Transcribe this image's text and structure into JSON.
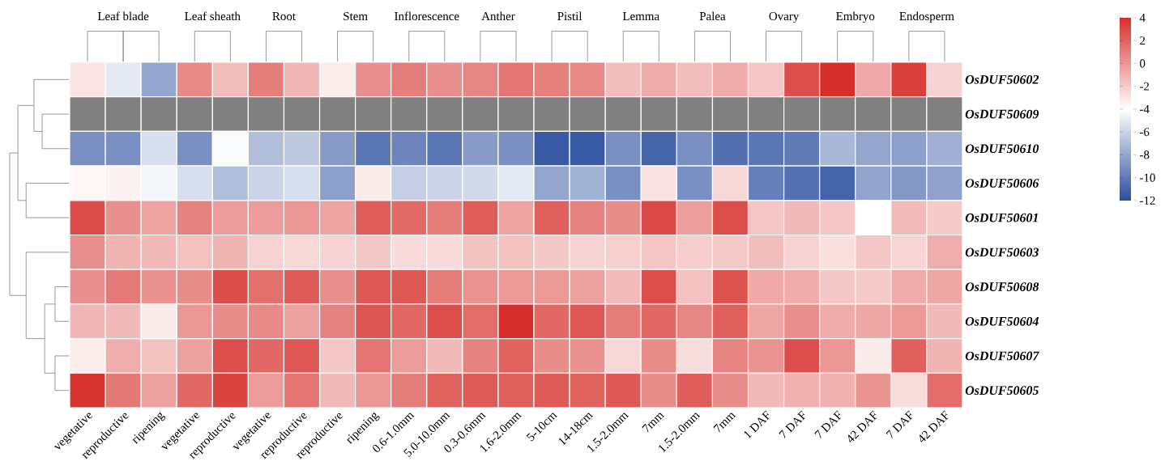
{
  "chart_data": {
    "type": "heatmap",
    "categories": [
      "vegetative",
      "reproductive",
      "ripening",
      "vegetative",
      "reproductive",
      "vegetative",
      "reproductive",
      "reproductive",
      "ripening",
      "0.6-1.0mm",
      "5.0-10.0mm",
      "0.3-0.6mm",
      "1.6-2.0mm",
      "5-10cm",
      "14-18cm",
      "1.5-2.0mm",
      "7mm",
      "1.5-2.0mm",
      "7mm",
      "1 DAF",
      "7 DAF",
      "7 DAF",
      "42 DAF",
      "7 DAF",
      "42 DAF"
    ],
    "y_categories": [
      "OsDUF50602",
      "OsDUF50609",
      "OsDUF50610",
      "OsDUF50606",
      "OsDUF50601",
      "OsDUF50603",
      "OsDUF50608",
      "OsDUF50604",
      "OsDUF50607",
      "OsDUF50605"
    ],
    "annotations": [
      "Leaf blade",
      "Leaf sheath",
      "Root",
      "Stem",
      "Inflorescence",
      "Anther",
      "Pistil",
      "Lemma",
      "Palea",
      "Ovary",
      "Embryo",
      "Endosperm"
    ],
    "cells": [
      [
        -3,
        -5,
        -8,
        0.5,
        -1.5,
        1,
        -1.2,
        -3.3,
        0.3,
        1,
        0.3,
        0.6,
        1.3,
        0.9,
        0.5,
        -1.5,
        -0.8,
        -1.5,
        -0.8,
        -1.8,
        2.8,
        4,
        -0.7,
        3.4,
        -2.3
      ],
      [
        null,
        null,
        null,
        null,
        null,
        null,
        null,
        null,
        null,
        null,
        null,
        null,
        null,
        null,
        null,
        null,
        null,
        null,
        null,
        null,
        null,
        null,
        null,
        null,
        null
      ],
      [
        -9,
        -9,
        -5.5,
        -9,
        -4.2,
        -7,
        -6.5,
        -8.5,
        -10.2,
        -9.5,
        -10.2,
        -8.5,
        -9,
        -11.5,
        -11.5,
        -9,
        -11,
        -9,
        -10.5,
        -10.2,
        -10,
        -7.2,
        -8,
        -8.3,
        -7.6
      ],
      [
        -3.7,
        -3.5,
        -4.4,
        -5.5,
        -7,
        -6,
        -5.5,
        -8.3,
        -3.2,
        -6.2,
        -6,
        -5.7,
        -5,
        -8,
        -7.5,
        -9,
        -2.9,
        -9,
        -2.5,
        -9.8,
        -10.4,
        -11,
        -8.1,
        -8.6,
        -8.2
      ],
      [
        2.9,
        0.3,
        -0.5,
        0.8,
        -0.2,
        -0.2,
        0,
        -0.5,
        2.2,
        1.7,
        1,
        2.2,
        -0.5,
        2.1,
        0.8,
        0.4,
        3,
        -0.3,
        2.8,
        -1.8,
        -1.3,
        -1.8,
        -4,
        -1.4,
        -2
      ],
      [
        0.3,
        -1.1,
        -1.3,
        -1.6,
        -1.1,
        -2.3,
        -2.5,
        -2.3,
        -1.9,
        -2.6,
        -2.6,
        -1.7,
        -1.6,
        -1.9,
        -2.3,
        -2.2,
        -1.8,
        -2.1,
        -2,
        -1.5,
        -2.3,
        -2.8,
        -1.8,
        -2.4,
        -0.9
      ],
      [
        0.3,
        1.1,
        0.2,
        0.4,
        2.9,
        1.5,
        2.3,
        0.3,
        2.4,
        2.4,
        1,
        0.1,
        -0.1,
        -0.1,
        -0.4,
        -1.4,
        2.8,
        -1.6,
        2.6,
        -0.7,
        -0.8,
        -1.9,
        -2,
        -0.8,
        -0.6
      ],
      [
        -1.2,
        -1.3,
        -3.2,
        0,
        0.4,
        0.5,
        -0.4,
        0.8,
        2.5,
        1.8,
        2.8,
        1.6,
        4,
        1.8,
        2.4,
        1,
        1.8,
        0.6,
        2.1,
        -0.6,
        0.3,
        -0.8,
        -0.6,
        -0.1,
        -1.3
      ],
      [
        -3.3,
        -0.9,
        -1.7,
        -0.4,
        2.8,
        1.8,
        2.4,
        -1.8,
        1.3,
        -0.2,
        -1.3,
        0.8,
        2,
        0.4,
        0.2,
        -2.5,
        0.4,
        -2.7,
        0.7,
        0.1,
        2.8,
        0,
        -3.2,
        2.1,
        -1.1
      ],
      [
        3.8,
        1.2,
        -0.4,
        1.8,
        3.2,
        -0.2,
        1.3,
        -1.3,
        0,
        1,
        2,
        2.3,
        2.1,
        2.3,
        2,
        2.4,
        0.4,
        2.2,
        0.4,
        -1.3,
        -1,
        -1,
        0.1,
        -2.7,
        1.6
      ]
    ],
    "clim": [
      -12,
      4
    ],
    "cticks": [
      4,
      2,
      0,
      -2,
      -4,
      -6,
      -8,
      -10,
      -12
    ]
  }
}
